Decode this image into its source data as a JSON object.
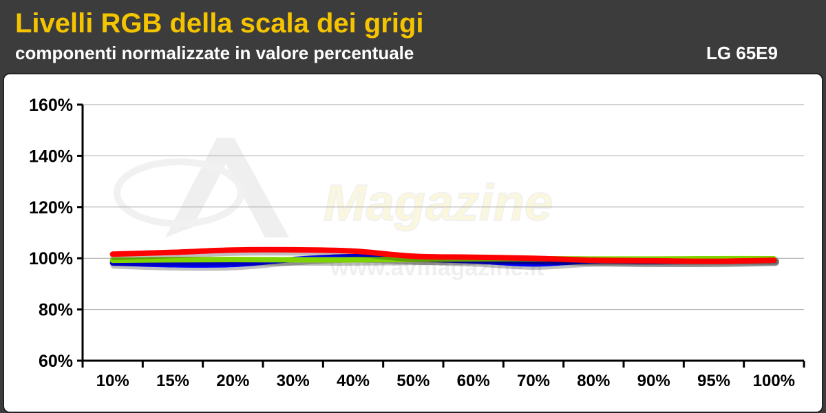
{
  "title": "Livelli RGB della scala dei grigi",
  "subtitle": "componenti normalizzate in valore percentuale",
  "model": "LG 65E9",
  "watermark": {
    "brand": "AV Magazine",
    "url": "www.avmagazine.it"
  },
  "colors": {
    "header_bg": "#3c3c3c",
    "title": "#f5c400",
    "red": "#ff0000",
    "green": "#7fd400",
    "blue": "#0000ff",
    "grid": "#a6a6a6"
  },
  "chart_data": {
    "type": "line",
    "title": "Livelli RGB della scala dei grigi",
    "subtitle": "componenti normalizzate in valore percentuale",
    "categories": [
      "10%",
      "15%",
      "20%",
      "30%",
      "40%",
      "50%",
      "60%",
      "70%",
      "80%",
      "90%",
      "95%",
      "100%"
    ],
    "ylim": [
      60,
      160
    ],
    "yticks": [
      "60%",
      "80%",
      "100%",
      "120%",
      "140%",
      "160%"
    ],
    "grid": true,
    "series": [
      {
        "color": "blue",
        "values": [
          98.2,
          97.5,
          97.6,
          99.5,
          100.6,
          99.8,
          99.0,
          97.8,
          99.0,
          98.8,
          99.0,
          99.4
        ]
      },
      {
        "color": "green",
        "values": [
          99.2,
          99.4,
          99.5,
          99.4,
          99.4,
          99.6,
          99.8,
          99.8,
          99.7,
          99.7,
          99.8,
          99.8
        ]
      },
      {
        "color": "red",
        "values": [
          101.6,
          102.3,
          103.2,
          103.3,
          102.8,
          100.8,
          100.4,
          100.0,
          99.2,
          99.0,
          98.8,
          99.2
        ]
      }
    ]
  }
}
